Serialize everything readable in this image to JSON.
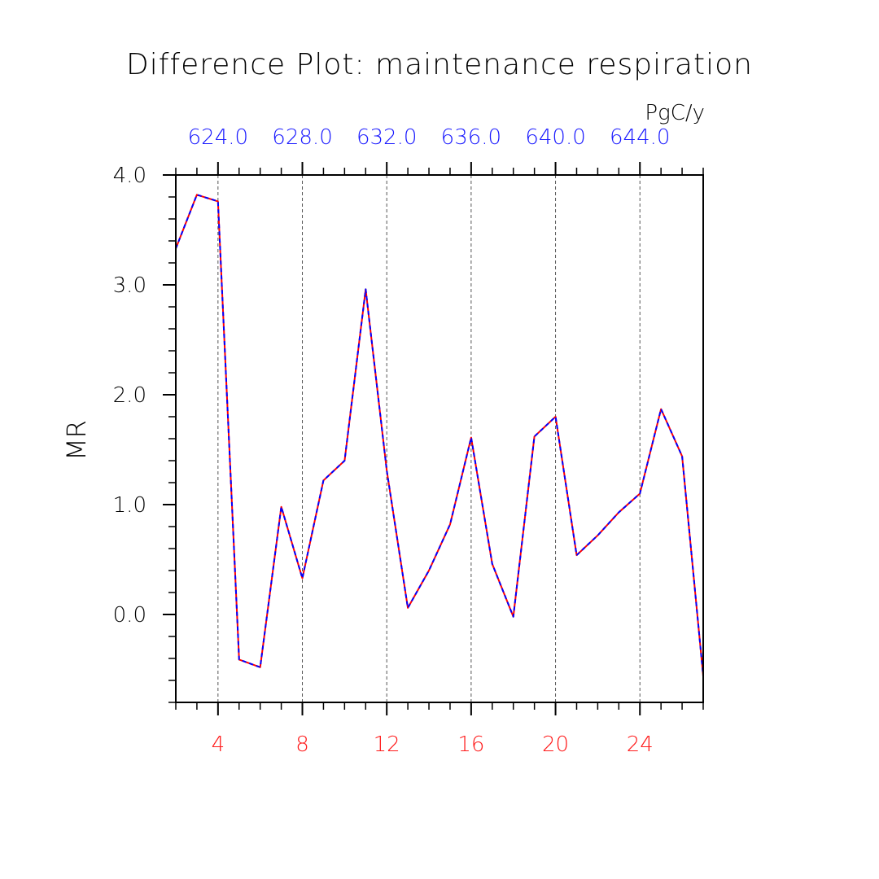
{
  "chart_data": {
    "type": "line",
    "title": "Difference Plot: maintenance respiration",
    "ylabel": "MR",
    "units": "PgC/y",
    "xlim": [
      2,
      27
    ],
    "ylim": [
      -0.8,
      4.0
    ],
    "x_ticks": [
      4,
      8,
      12,
      16,
      20,
      24
    ],
    "x_tick_labels": [
      "4",
      "8",
      "12",
      "16",
      "20",
      "24"
    ],
    "y_ticks": [
      0.0,
      1.0,
      2.0,
      3.0,
      4.0
    ],
    "y_tick_labels": [
      "0.0",
      "1.0",
      "2.0",
      "3.0",
      "4.0"
    ],
    "top_axis_ticks": [
      4,
      8,
      12,
      16,
      20,
      24
    ],
    "top_axis_labels": [
      "624.0",
      "628.0",
      "632.0",
      "636.0",
      "640.0",
      "644.0"
    ],
    "grid": "vertical dashed at major x ticks",
    "colors": {
      "bottom_axis": "#ff1a1a",
      "top_axis": "#1a1aff",
      "line_a": "#ff0000",
      "line_b": "#0000ff"
    },
    "x": [
      2,
      3,
      4,
      5,
      6,
      7,
      8,
      9,
      10,
      11,
      12,
      13,
      14,
      15,
      16,
      17,
      18,
      19,
      20,
      21,
      22,
      23,
      24,
      25,
      26,
      27
    ],
    "series": [
      {
        "values": [
          3.33,
          3.82,
          3.76,
          -0.41,
          -0.48,
          0.98,
          0.33,
          1.22,
          1.4,
          2.96,
          1.31,
          0.06,
          0.4,
          0.82,
          1.61,
          0.46,
          -0.02,
          1.62,
          1.8,
          0.54,
          0.72,
          0.93,
          1.1,
          1.87,
          1.44,
          -0.56
        ]
      }
    ]
  }
}
